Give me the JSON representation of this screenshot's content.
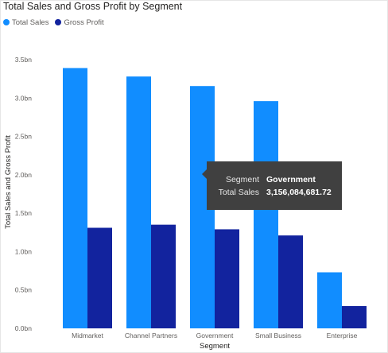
{
  "chart_data": {
    "type": "bar",
    "title": "Total Sales and Gross Profit by Segment",
    "xlabel": "Segment",
    "ylabel": "Total Sales and Gross Profit",
    "categories": [
      "Midmarket",
      "Channel Partners",
      "Government",
      "Small Business",
      "Enterprise"
    ],
    "series": [
      {
        "name": "Total Sales",
        "color": "#118DFF",
        "values": [
          3.39,
          3.28,
          3.156084681,
          2.96,
          0.73
        ]
      },
      {
        "name": "Gross Profit",
        "color": "#12239E",
        "values": [
          1.31,
          1.35,
          1.29,
          1.21,
          0.29
        ]
      }
    ],
    "ylim": [
      0,
      3.5
    ],
    "yticks": [
      {
        "value": 0,
        "label": "0.0bn"
      },
      {
        "value": 0.5,
        "label": "0.5bn"
      },
      {
        "value": 1.0,
        "label": "1.0bn"
      },
      {
        "value": 1.5,
        "label": "1.5bn"
      },
      {
        "value": 2.0,
        "label": "2.0bn"
      },
      {
        "value": 2.5,
        "label": "2.5bn"
      },
      {
        "value": 3.0,
        "label": "3.0bn"
      },
      {
        "value": 3.5,
        "label": "3.5bn"
      }
    ],
    "grid": false,
    "legend_position": "top-left"
  },
  "tooltip": {
    "rows": [
      {
        "key": "Segment",
        "value": "Government"
      },
      {
        "key": "Total Sales",
        "value": "3,156,084,681.72"
      }
    ]
  }
}
